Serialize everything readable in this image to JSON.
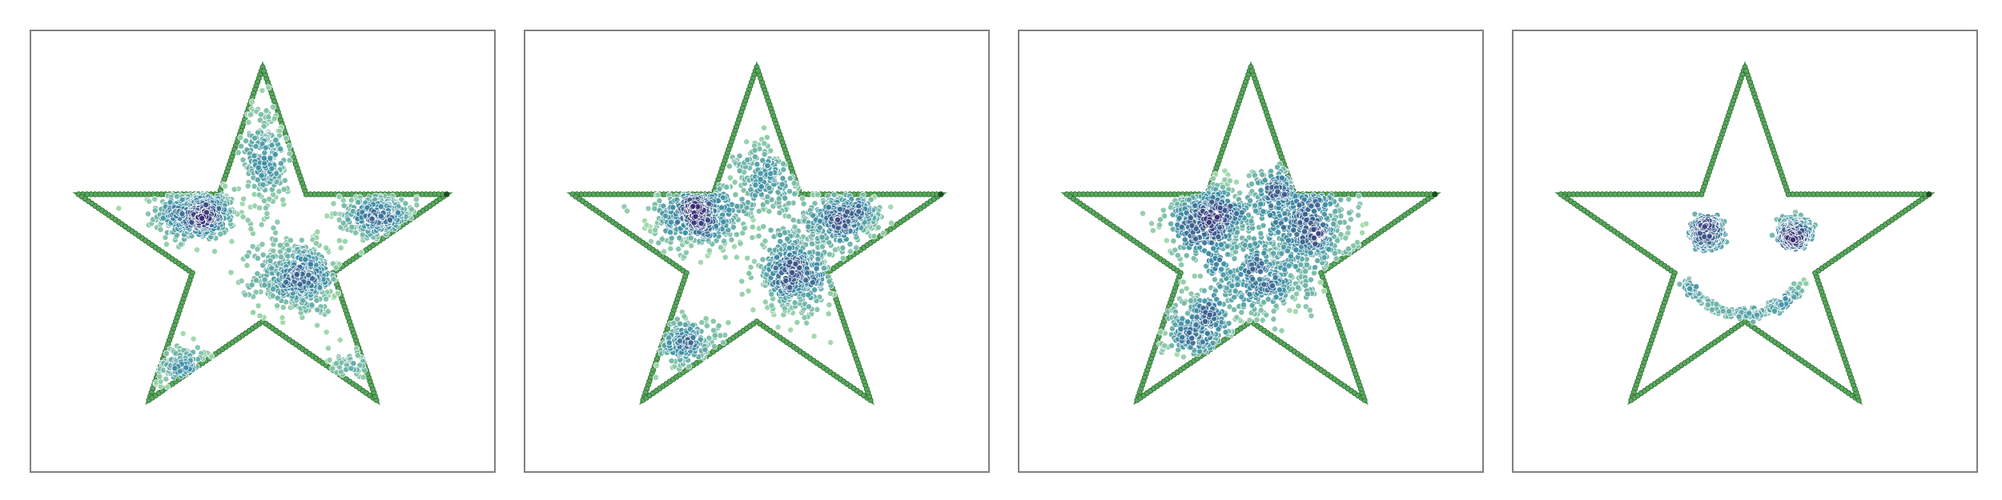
{
  "colors": {
    "star_outline": "#3f8f45",
    "star_point": "#5aa85e",
    "star_point_edge": "#2a6a31",
    "cluster_low": "#9fd8a8",
    "cluster_mid": "#3d8fa6",
    "cluster_high": "#3b2c74",
    "frame": "#808080"
  },
  "chart_data": [
    {
      "type": "scatter",
      "panel": 1,
      "boundary": "star",
      "grid": false,
      "xlim": [
        -1.2,
        1.2
      ],
      "ylim": [
        -1.2,
        1.2
      ],
      "clusters": [
        {
          "cx": -0.34,
          "cy": 0.2,
          "sx": 0.1,
          "sy": 0.07,
          "n": 520,
          "density": "high"
        },
        {
          "cx": 0.18,
          "cy": -0.14,
          "sx": 0.11,
          "sy": 0.1,
          "n": 520,
          "density": "high"
        },
        {
          "cx": 0.6,
          "cy": 0.2,
          "sx": 0.1,
          "sy": 0.06,
          "n": 320,
          "density": "mid"
        },
        {
          "cx": 0.02,
          "cy": 0.52,
          "sx": 0.06,
          "sy": 0.16,
          "n": 300,
          "density": "mid"
        },
        {
          "cx": -0.42,
          "cy": -0.62,
          "sx": 0.1,
          "sy": 0.06,
          "n": 200,
          "density": "low"
        },
        {
          "cx": 0.48,
          "cy": -0.62,
          "sx": 0.07,
          "sy": 0.05,
          "n": 90,
          "density": "low"
        }
      ]
    },
    {
      "type": "scatter",
      "panel": 2,
      "boundary": "star",
      "grid": false,
      "xlim": [
        -1.2,
        1.2
      ],
      "ylim": [
        -1.2,
        1.2
      ],
      "clusters": [
        {
          "cx": -0.3,
          "cy": 0.2,
          "sx": 0.12,
          "sy": 0.09,
          "n": 560,
          "density": "high"
        },
        {
          "cx": 0.2,
          "cy": -0.12,
          "sx": 0.11,
          "sy": 0.11,
          "n": 480,
          "density": "high"
        },
        {
          "cx": 0.44,
          "cy": 0.18,
          "sx": 0.11,
          "sy": 0.07,
          "n": 360,
          "density": "mid"
        },
        {
          "cx": -0.38,
          "cy": -0.5,
          "sx": 0.11,
          "sy": 0.07,
          "n": 260,
          "density": "low"
        },
        {
          "cx": 0.05,
          "cy": 0.4,
          "sx": 0.08,
          "sy": 0.1,
          "n": 200,
          "density": "low"
        }
      ]
    },
    {
      "type": "scatter",
      "panel": 3,
      "boundary": "star",
      "grid": false,
      "xlim": [
        -1.2,
        1.2
      ],
      "ylim": [
        -1.2,
        1.2
      ],
      "clusters": [
        {
          "cx": -0.22,
          "cy": 0.18,
          "sx": 0.11,
          "sy": 0.1,
          "n": 480,
          "density": "high"
        },
        {
          "cx": 0.3,
          "cy": 0.12,
          "sx": 0.12,
          "sy": 0.12,
          "n": 420,
          "density": "mid"
        },
        {
          "cx": 0.05,
          "cy": -0.14,
          "sx": 0.14,
          "sy": 0.12,
          "n": 400,
          "density": "mid"
        },
        {
          "cx": -0.28,
          "cy": -0.4,
          "sx": 0.1,
          "sy": 0.09,
          "n": 300,
          "density": "low"
        },
        {
          "cx": 0.18,
          "cy": 0.32,
          "sx": 0.12,
          "sy": 0.08,
          "n": 250,
          "density": "low"
        }
      ]
    },
    {
      "type": "scatter",
      "panel": 4,
      "boundary": "star",
      "grid": false,
      "xlim": [
        -1.2,
        1.2
      ],
      "ylim": [
        -1.2,
        1.2
      ],
      "clusters": [
        {
          "shape": "ring",
          "cx": -0.2,
          "cy": 0.1,
          "r": 0.075,
          "n": 160,
          "density": "mid"
        },
        {
          "shape": "blob",
          "cx": -0.2,
          "cy": 0.1,
          "sx": 0.04,
          "sy": 0.04,
          "n": 120,
          "density": "high"
        },
        {
          "shape": "ring",
          "cx": 0.26,
          "cy": 0.1,
          "r": 0.075,
          "n": 160,
          "density": "mid"
        },
        {
          "shape": "blob",
          "cx": 0.26,
          "cy": 0.1,
          "sx": 0.04,
          "sy": 0.04,
          "n": 120,
          "density": "high"
        },
        {
          "shape": "smile",
          "cx": 0.0,
          "cy": 0.02,
          "r": 0.36,
          "a0": 210,
          "a1": 330,
          "n": 240,
          "density": "mid"
        }
      ]
    }
  ]
}
